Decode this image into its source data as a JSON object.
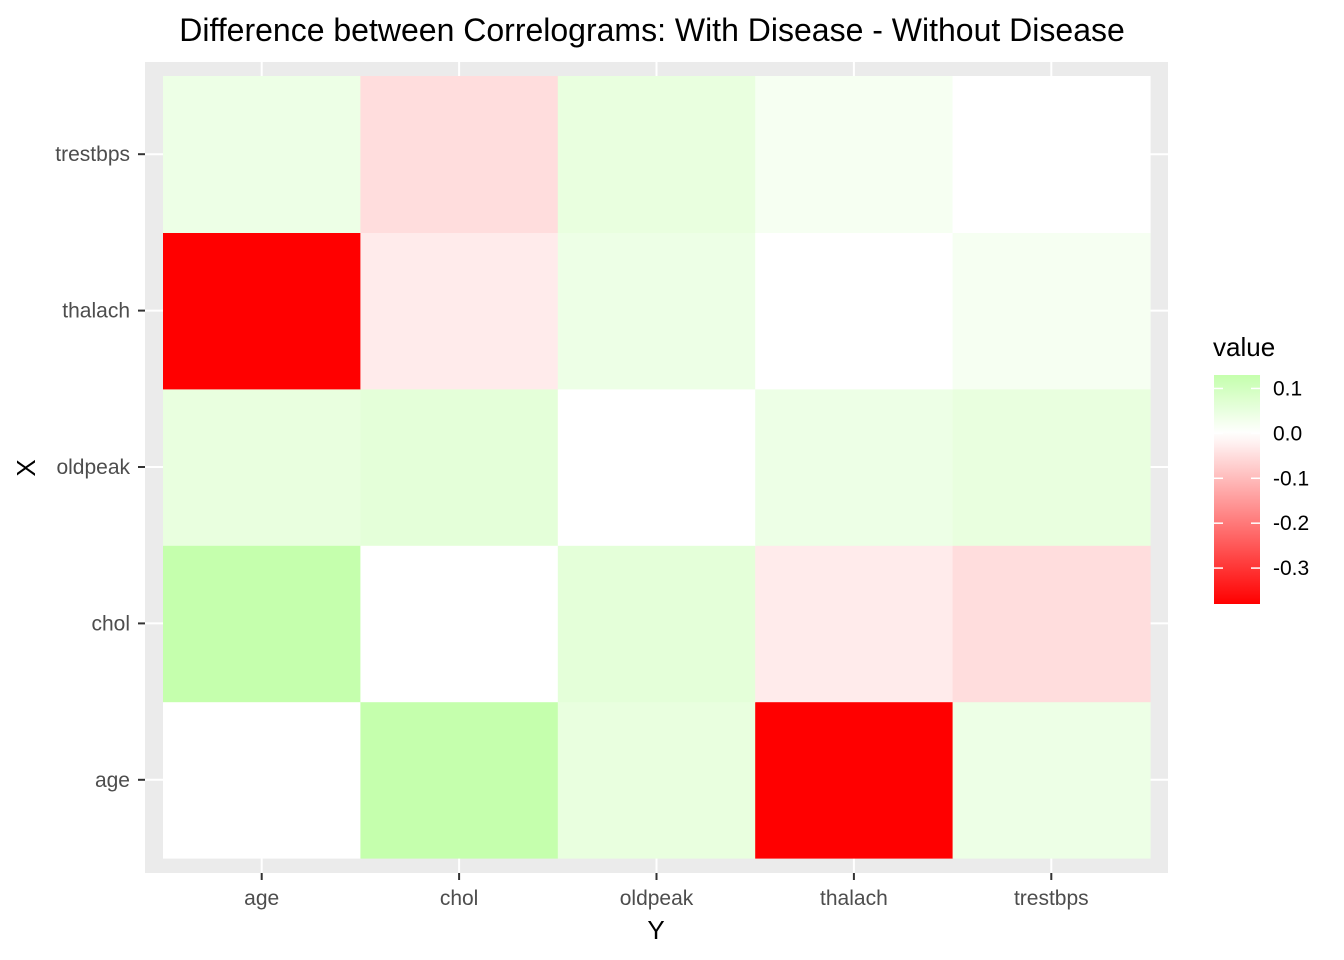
{
  "chart_data": {
    "type": "heatmap",
    "title": "Difference between Correlograms: With Disease - Without Disease",
    "xlabel": "Y",
    "ylabel": "X",
    "x_categories": [
      "age",
      "chol",
      "oldpeak",
      "thalach",
      "trestbps"
    ],
    "y_categories": [
      "age",
      "chol",
      "oldpeak",
      "thalach",
      "trestbps"
    ],
    "values": [
      [
        0.0,
        0.13,
        0.05,
        -0.38,
        0.04
      ],
      [
        0.13,
        0.0,
        0.06,
        -0.03,
        -0.05
      ],
      [
        0.05,
        0.06,
        0.0,
        0.04,
        0.05
      ],
      [
        -0.38,
        -0.03,
        0.04,
        0.0,
        0.02
      ],
      [
        0.04,
        -0.05,
        0.05,
        0.02,
        0.0
      ]
    ],
    "legend": {
      "title": "value",
      "ticks": [
        0.1,
        0.0,
        -0.1,
        -0.2,
        -0.3
      ],
      "tick_labels": [
        "0.1",
        "0.0",
        "-0.1",
        "-0.2",
        "-0.3"
      ],
      "range": [
        -0.38,
        0.13
      ],
      "low_color": "#ff0000",
      "mid_color": "#ffffff",
      "high_color": "#c5ffad",
      "position": "right"
    },
    "panel_background": "#ebebeb",
    "grid": true
  }
}
